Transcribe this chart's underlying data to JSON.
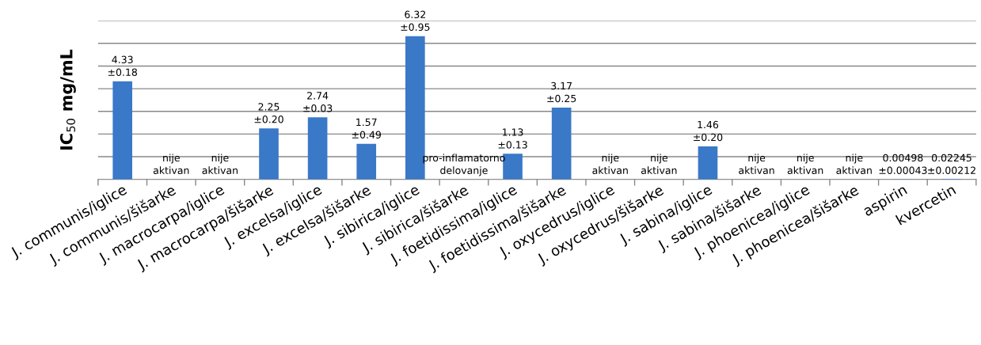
{
  "chart_data": {
    "type": "bar",
    "ylabel": "IC$_{50}$ mg/mL",
    "categories": [
      "J. communis/iglice",
      "J. communis/šišarke",
      "J. macrocarpa/iglice",
      "J. macrocarpa/šišarke",
      "J. excelsa/iglice",
      "J. excelsa/šišarke",
      "J. sibirica/iglice",
      "J. sibirica/šišarke",
      "J. foetidissima/iglice",
      "J. foetidissima/šišarke",
      "J. oxycedrus/iglice",
      "J. oxycedrus/šišarke",
      "J. sabina/iglice",
      "J. sabina/šišarke",
      "J. phoenicea/iglice",
      "J. phoenicea/šišarke",
      "aspirin",
      "kvercetin"
    ],
    "values": [
      4.33,
      null,
      null,
      2.25,
      2.74,
      1.57,
      6.32,
      null,
      1.13,
      3.17,
      null,
      null,
      1.46,
      null,
      null,
      null,
      0.00498,
      0.02245
    ],
    "value_labels": [
      "4.33\n±0.18",
      "nije\naktivan",
      "nije\naktivan",
      "2.25\n±0.20",
      "2.74\n±0.03",
      "1.57\n±0.49",
      "6.32\n±0.95",
      "pro-inflamatorno\ndelovanje",
      "1.13\n±0.13",
      "3.17\n±0.25",
      "nije\naktivan",
      "nije\naktivan",
      "1.46\n±0.20",
      "nije\naktivan",
      "nije\naktivan",
      "nije\naktivan",
      "0.00498\n±0.00043",
      "0.02245\n±0.00212"
    ],
    "color": "#3a78c8",
    "ylim": [
      0,
      7
    ],
    "yticks": [
      {
        "value": 0,
        "label": null
      },
      {
        "value": 1,
        "label": null
      },
      {
        "value": 2,
        "label": null
      },
      {
        "value": 3,
        "label": null
      },
      {
        "value": 4,
        "label": null
      },
      {
        "value": 5,
        "label": null
      },
      {
        "value": 6,
        "label": null
      },
      {
        "value": 7,
        "label": null
      }
    ],
    "tick_labels": "x",
    "grid": "y"
  }
}
